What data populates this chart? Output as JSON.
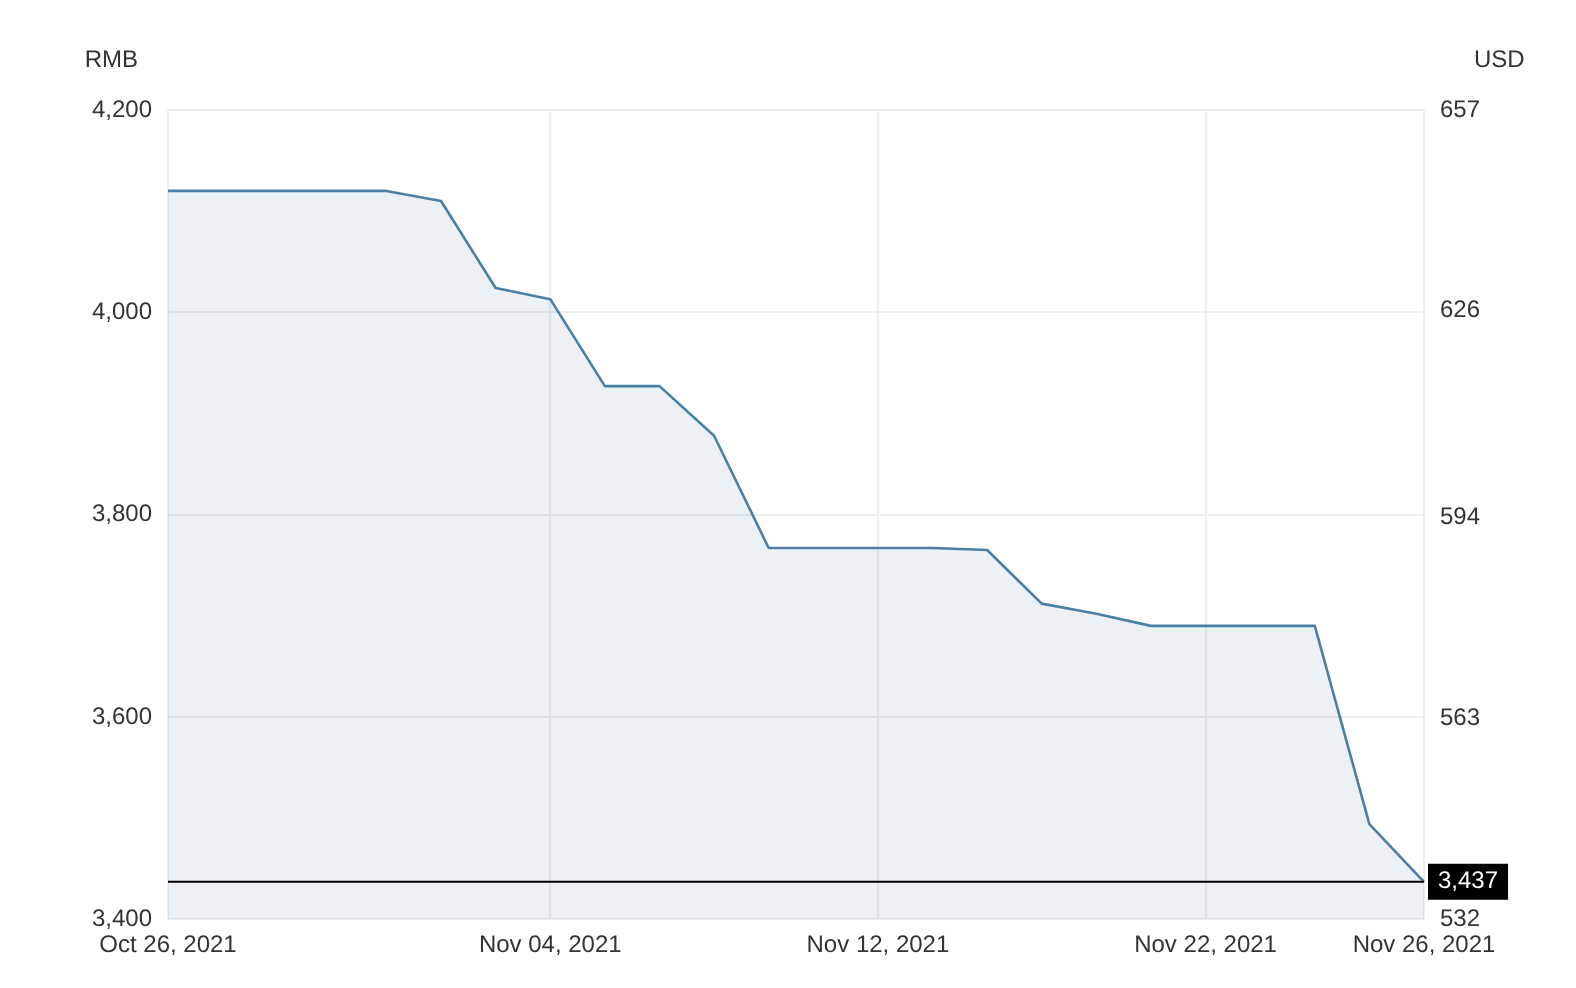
{
  "chart_data": {
    "type": "area",
    "ylabel": "RMB",
    "y2label": "USD",
    "categories": [
      "Oct 26, 2021",
      null,
      null,
      null,
      null,
      null,
      null,
      "Nov 04, 2021",
      null,
      null,
      null,
      null,
      null,
      "Nov 12, 2021",
      null,
      null,
      null,
      null,
      null,
      "Nov 22, 2021",
      null,
      null,
      null,
      "Nov 26, 2021"
    ],
    "series": [
      {
        "color": "#4a7fa6",
        "values": [
          4120,
          4120,
          4120,
          4120,
          4120,
          4110,
          4024,
          4013,
          3927,
          3927,
          3878,
          3767,
          3767,
          3767,
          3767,
          3765,
          3712,
          3702,
          3690,
          3690,
          3690,
          3690,
          3494,
          3437
        ]
      }
    ],
    "ylim": [
      3400,
      4200
    ],
    "yticks": [
      {
        "value": 3400,
        "label": "3,400"
      },
      {
        "value": 3600,
        "label": "3,600"
      },
      {
        "value": 3800,
        "label": "3,800"
      },
      {
        "value": 4000,
        "label": "4,000"
      },
      {
        "value": 4200,
        "label": "4,200"
      }
    ],
    "y2lim": [
      532,
      657
    ],
    "y2ticks": [
      532,
      563,
      594,
      626,
      657
    ],
    "ref_lines": [
      {
        "axis": "y",
        "value": 3437,
        "label": "3,437",
        "color": "#000000"
      }
    ],
    "grid": true,
    "marker": "none"
  }
}
